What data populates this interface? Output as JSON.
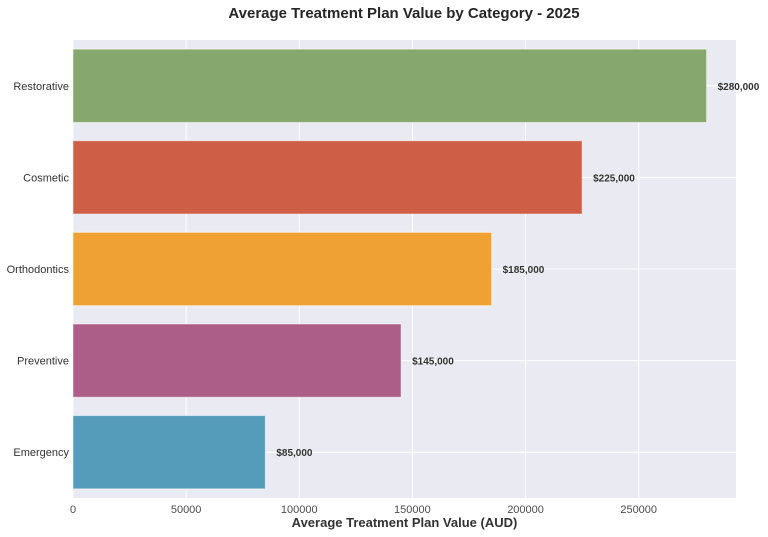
{
  "chart_data": {
    "type": "bar",
    "orientation": "horizontal",
    "title": "Average Treatment Plan Value by Category - 2025",
    "xlabel": "Average Treatment Plan Value (AUD)",
    "ylabel": "",
    "categories": [
      "Restorative",
      "Cosmetic",
      "Orthodontics",
      "Preventive",
      "Emergency"
    ],
    "values": [
      280000,
      225000,
      185000,
      145000,
      85000
    ],
    "data_labels": [
      "$280,000",
      "$225,000",
      "$185,000",
      "$145,000",
      "$85,000"
    ],
    "colors": [
      "#86a86e",
      "#ce5e45",
      "#efa233",
      "#ac5e88",
      "#559bba"
    ],
    "xlim": [
      0,
      293000
    ],
    "xticks": [
      0,
      50000,
      100000,
      150000,
      200000,
      250000
    ],
    "xtick_labels": [
      "0",
      "50000",
      "100000",
      "150000",
      "200000",
      "250000"
    ],
    "grid": true,
    "background": "#eaeaf2",
    "legend": "none"
  }
}
